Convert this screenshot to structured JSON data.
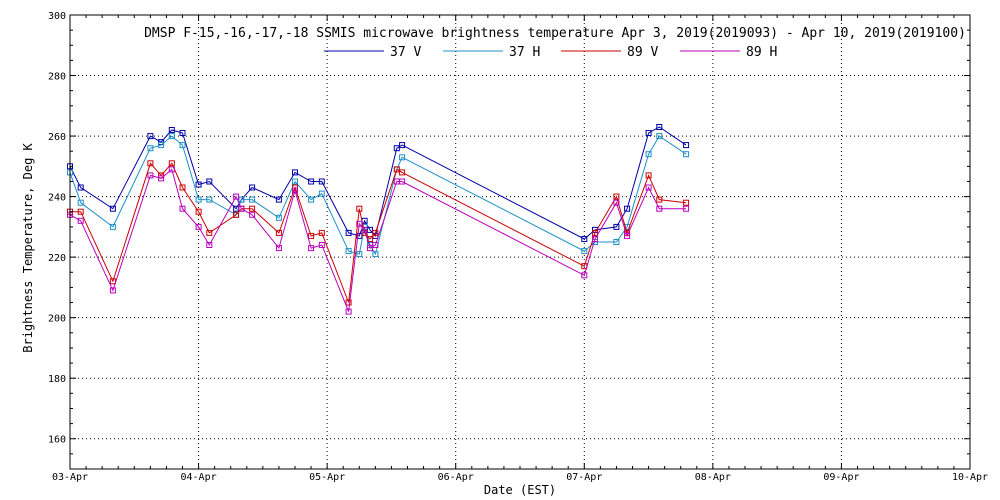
{
  "chart_data": {
    "type": "line",
    "title": "DMSP F-15,-16,-17,-18 SSMIS microwave brightness temperature Apr  3, 2019(2019093) - Apr 10, 2019(2019100)",
    "xlabel": "Date (EST)",
    "ylabel": "Brightness Temperature, Deg K",
    "xlim": [
      "03-Apr",
      "10-Apr"
    ],
    "ylim": [
      150,
      300
    ],
    "x_ticks": [
      "03-Apr",
      "04-Apr",
      "05-Apr",
      "06-Apr",
      "07-Apr",
      "08-Apr",
      "09-Apr",
      "10-Apr"
    ],
    "y_ticks": [
      160,
      180,
      200,
      220,
      240,
      260,
      280,
      300
    ],
    "grid": true,
    "legend_position": "top-center",
    "x": [
      "03-Apr 00:00",
      "03-Apr 02:00",
      "03-Apr 08:00",
      "03-Apr 15:00",
      "03-Apr 17:00",
      "03-Apr 19:00",
      "03-Apr 21:00",
      "04-Apr 00:00",
      "04-Apr 02:00",
      "04-Apr 07:00",
      "04-Apr 08:00",
      "04-Apr 10:00",
      "04-Apr 15:00",
      "04-Apr 18:00",
      "04-Apr 21:00",
      "04-Apr 23:00",
      "05-Apr 04:00",
      "05-Apr 06:00",
      "05-Apr 07:00",
      "05-Apr 08:00",
      "05-Apr 09:00",
      "05-Apr 13:00",
      "05-Apr 14:00",
      "06-Apr 24:00",
      "07-Apr 02:00",
      "07-Apr 06:00",
      "07-Apr 08:00",
      "07-Apr 12:00",
      "07-Apr 14:00",
      "07-Apr 19:00"
    ],
    "series": [
      {
        "name": "37 V",
        "color": "#0000aa",
        "values": [
          250,
          243,
          236,
          260,
          258,
          262,
          261,
          244,
          245,
          236,
          239,
          243,
          239,
          248,
          245,
          245,
          228,
          227,
          232,
          229,
          227,
          256,
          257,
          226,
          229,
          230,
          236,
          261,
          263,
          257
        ]
      },
      {
        "name": "37 H",
        "color": "#1e90c8",
        "values": [
          248,
          238,
          230,
          256,
          257,
          260,
          257,
          239,
          239,
          234,
          239,
          239,
          233,
          245,
          239,
          241,
          222,
          221,
          230,
          224,
          221,
          249,
          253,
          222,
          225,
          225,
          230,
          254,
          260,
          254
        ]
      },
      {
        "name": "89 V",
        "color": "#cc0000",
        "values": [
          235,
          235,
          212,
          251,
          247,
          251,
          243,
          235,
          228,
          234,
          236,
          236,
          228,
          243,
          227,
          228,
          205,
          236,
          228,
          226,
          228,
          249,
          248,
          217,
          228,
          240,
          228,
          247,
          239,
          238
        ]
      },
      {
        "name": "89 H",
        "color": "#bb00bb",
        "values": [
          234,
          232,
          209,
          247,
          246,
          249,
          236,
          230,
          224,
          240,
          236,
          234,
          223,
          242,
          223,
          224,
          202,
          231,
          229,
          223,
          224,
          245,
          245,
          214,
          226,
          238,
          227,
          243,
          236,
          236
        ]
      }
    ]
  }
}
